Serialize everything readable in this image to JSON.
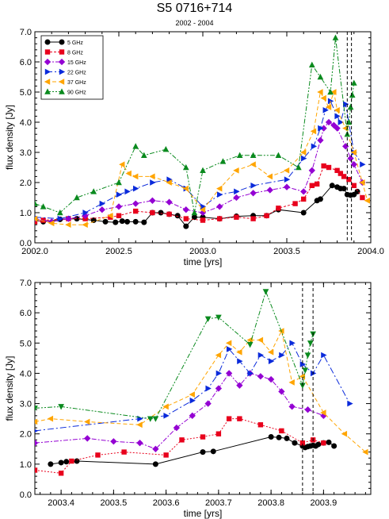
{
  "title": "S5 0716+714",
  "subtitle": "2002 - 2004",
  "chart_data": [
    {
      "type": "scatter",
      "xlabel": "time [yrs]",
      "ylabel": "flux density [Jy]",
      "xlim": [
        2002.0,
        2004.0
      ],
      "ylim": [
        0.0,
        7.0
      ],
      "xticks": [
        "2002.0",
        "2002.5",
        "2003.0",
        "2003.5",
        "2004.0"
      ],
      "yticks": [
        "0.0",
        "1.0",
        "2.0",
        "3.0",
        "4.0",
        "5.0",
        "6.0",
        "7.0"
      ],
      "vlines": [
        2003.86,
        2003.885
      ],
      "legend": "top-left",
      "grid": false,
      "series": [
        {
          "name": "5 GHz",
          "color": "#000000",
          "marker": "circle",
          "dash": "",
          "x": [
            2002.0,
            2002.05,
            2002.15,
            2002.25,
            2002.35,
            2002.42,
            2002.48,
            2002.52,
            2002.55,
            2002.6,
            2002.65,
            2002.7,
            2002.75,
            2002.8,
            2002.85,
            2002.9,
            2002.95,
            2003.0,
            2003.1,
            2003.2,
            2003.3,
            2003.38,
            2003.45,
            2003.6,
            2003.68,
            2003.7,
            2003.77,
            2003.8,
            2003.82,
            2003.84,
            2003.86,
            2003.88,
            2003.9,
            2003.92
          ],
          "y": [
            0.75,
            0.7,
            0.78,
            0.8,
            0.75,
            0.7,
            0.68,
            0.72,
            0.7,
            0.7,
            0.68,
            1.0,
            1.0,
            0.95,
            0.9,
            0.55,
            0.85,
            0.85,
            0.8,
            0.88,
            0.9,
            0.9,
            1.1,
            1.0,
            1.4,
            1.45,
            1.9,
            1.85,
            1.8,
            1.8,
            1.6,
            1.58,
            1.6,
            1.7
          ]
        },
        {
          "name": "8 GHz",
          "color": "#e8001c",
          "marker": "square",
          "dash": "3,2",
          "x": [
            2002.0,
            2002.05,
            2002.2,
            2002.3,
            2002.45,
            2002.5,
            2002.6,
            2002.7,
            2002.8,
            2002.9,
            2003.0,
            2003.1,
            2003.2,
            2003.3,
            2003.38,
            2003.45,
            2003.55,
            2003.6,
            2003.65,
            2003.68,
            2003.72,
            2003.75,
            2003.8,
            2003.82,
            2003.84,
            2003.87,
            2003.9,
            2003.95
          ],
          "y": [
            0.7,
            0.75,
            0.8,
            0.8,
            0.85,
            0.9,
            1.05,
            1.0,
            0.95,
            0.8,
            0.75,
            0.8,
            0.85,
            0.8,
            0.9,
            1.15,
            1.3,
            1.45,
            1.9,
            1.95,
            2.55,
            2.5,
            2.4,
            2.3,
            2.2,
            2.1,
            1.9,
            1.5
          ]
        },
        {
          "name": "15 GHz",
          "color": "#9400d3",
          "marker": "diamond",
          "dash": "6,2,2,2",
          "x": [
            2002.0,
            2002.1,
            2002.2,
            2002.3,
            2002.4,
            2002.5,
            2002.6,
            2002.7,
            2002.8,
            2002.9,
            2003.0,
            2003.1,
            2003.2,
            2003.3,
            2003.4,
            2003.5,
            2003.6,
            2003.65,
            2003.7,
            2003.72,
            2003.75,
            2003.78,
            2003.8,
            2003.85,
            2003.88,
            2003.9,
            2003.95
          ],
          "y": [
            0.8,
            0.7,
            0.8,
            0.9,
            1.1,
            1.2,
            1.3,
            1.4,
            1.35,
            1.1,
            1.0,
            1.2,
            1.5,
            1.65,
            1.75,
            1.85,
            1.7,
            2.4,
            3.4,
            3.8,
            4.0,
            3.9,
            3.8,
            3.2,
            2.8,
            2.6,
            2.0
          ]
        },
        {
          "name": "22 GHz",
          "color": "#0a2adb",
          "marker": "triangle-right",
          "dash": "8,3,2,3",
          "x": [
            2002.0,
            2002.15,
            2002.3,
            2002.4,
            2002.5,
            2002.55,
            2002.6,
            2002.7,
            2002.8,
            2002.9,
            2003.0,
            2003.1,
            2003.2,
            2003.3,
            2003.5,
            2003.6,
            2003.66,
            2003.7,
            2003.73,
            2003.76,
            2003.8,
            2003.82,
            2003.85,
            2003.9,
            2003.95
          ],
          "y": [
            0.85,
            0.8,
            1.0,
            1.3,
            1.6,
            1.7,
            1.8,
            2.0,
            2.1,
            1.8,
            1.2,
            1.6,
            1.7,
            1.9,
            2.1,
            2.8,
            3.2,
            3.8,
            4.4,
            4.7,
            4.2,
            4.0,
            4.6,
            3.0,
            2.6
          ]
        },
        {
          "name": "37 GHz",
          "color": "#ffa500",
          "marker": "triangle-left",
          "dash": "5,3",
          "x": [
            2002.0,
            2002.1,
            2002.2,
            2002.3,
            2002.45,
            2002.52,
            2002.56,
            2002.6,
            2002.7,
            2002.8,
            2002.9,
            2003.0,
            2003.1,
            2003.2,
            2003.3,
            2003.4,
            2003.5,
            2003.6,
            2003.66,
            2003.7,
            2003.72,
            2003.75,
            2003.78,
            2003.8,
            2003.85,
            2003.9,
            2003.95,
            2003.98
          ],
          "y": [
            0.8,
            0.65,
            0.6,
            0.6,
            0.9,
            2.6,
            2.3,
            2.2,
            2.2,
            2.0,
            1.8,
            1.1,
            1.8,
            2.4,
            2.6,
            2.2,
            2.4,
            3.0,
            3.7,
            5.0,
            4.8,
            4.5,
            5.0,
            4.4,
            3.8,
            3.0,
            2.0,
            1.4
          ]
        },
        {
          "name": "90 GHz",
          "color": "#0a8a1e",
          "marker": "triangle-up",
          "dash": "6,2,2,2,2,2",
          "x": [
            2002.0,
            2002.05,
            2002.15,
            2002.25,
            2002.35,
            2002.5,
            2002.6,
            2002.65,
            2002.78,
            2002.9,
            2002.95,
            2003.0,
            2003.12,
            2003.22,
            2003.3,
            2003.45,
            2003.57,
            2003.65,
            2003.7,
            2003.76,
            2003.79,
            2003.86,
            2003.87,
            2003.88,
            2003.89,
            2003.9
          ],
          "y": [
            1.3,
            1.2,
            1.0,
            1.5,
            1.7,
            2.0,
            3.2,
            2.9,
            3.1,
            2.5,
            1.0,
            2.4,
            2.7,
            2.9,
            2.9,
            2.9,
            2.5,
            5.9,
            5.5,
            5.0,
            6.8,
            3.6,
            4.0,
            4.5,
            4.9,
            5.3
          ]
        }
      ]
    },
    {
      "type": "scatter",
      "xlabel": "time [yrs]",
      "ylabel": "flux density [Jy]",
      "xlim": [
        2003.35,
        2003.99
      ],
      "ylim": [
        0.0,
        7.0
      ],
      "xticks": [
        "2003.4",
        "2003.5",
        "2003.6",
        "2003.7",
        "2003.8",
        "2003.9"
      ],
      "yticks": [
        "0.0",
        "1.0",
        "2.0",
        "3.0",
        "4.0",
        "5.0",
        "6.0",
        "7.0"
      ],
      "vlines": [
        2003.86,
        2003.88
      ],
      "grid": false,
      "series": [
        {
          "name": "5 GHz",
          "color": "#000000",
          "marker": "circle",
          "dash": "",
          "x": [
            2003.38,
            2003.4,
            2003.41,
            2003.43,
            2003.58,
            2003.67,
            2003.69,
            2003.8,
            2003.815,
            2003.83,
            2003.845,
            2003.86,
            2003.865,
            2003.87,
            2003.875,
            2003.88,
            2003.885,
            2003.89,
            2003.9,
            2003.91,
            2003.92
          ],
          "y": [
            1.0,
            1.05,
            1.08,
            1.1,
            1.0,
            1.4,
            1.42,
            1.9,
            1.88,
            1.85,
            1.7,
            1.6,
            1.55,
            1.58,
            1.6,
            1.62,
            1.6,
            1.65,
            1.7,
            1.72,
            1.6
          ]
        },
        {
          "name": "8 GHz",
          "color": "#e8001c",
          "marker": "square",
          "dash": "2,2",
          "x": [
            2003.35,
            2003.4,
            2003.42,
            2003.47,
            2003.52,
            2003.6,
            2003.63,
            2003.67,
            2003.7,
            2003.72,
            2003.74,
            2003.78,
            2003.82,
            2003.86,
            2003.88,
            2003.9
          ],
          "y": [
            0.8,
            0.7,
            1.1,
            1.3,
            1.4,
            1.3,
            1.8,
            1.9,
            2.0,
            2.5,
            2.5,
            2.3,
            2.1,
            1.7,
            1.8,
            1.7
          ]
        },
        {
          "name": "15 GHz",
          "color": "#9400d3",
          "marker": "diamond",
          "dash": "6,2,2,2",
          "x": [
            2003.35,
            2003.45,
            2003.5,
            2003.55,
            2003.58,
            2003.62,
            2003.65,
            2003.68,
            2003.7,
            2003.72,
            2003.74,
            2003.76,
            2003.78,
            2003.8,
            2003.82,
            2003.84,
            2003.87,
            2003.9
          ],
          "y": [
            1.7,
            1.85,
            1.75,
            1.7,
            1.5,
            2.2,
            2.6,
            3.0,
            3.5,
            4.0,
            3.6,
            4.0,
            3.9,
            3.8,
            3.4,
            2.9,
            2.8,
            2.6
          ]
        },
        {
          "name": "22 GHz",
          "color": "#0a2adb",
          "marker": "triangle-right",
          "dash": "8,3,2,3",
          "x": [
            2003.35,
            2003.55,
            2003.6,
            2003.65,
            2003.68,
            2003.7,
            2003.72,
            2003.74,
            2003.76,
            2003.78,
            2003.8,
            2003.82,
            2003.84,
            2003.86,
            2003.88,
            2003.9,
            2003.95
          ],
          "y": [
            2.1,
            2.5,
            2.6,
            3.1,
            3.5,
            4.0,
            4.8,
            4.4,
            4.0,
            4.6,
            4.4,
            4.6,
            5.0,
            4.3,
            4.0,
            4.6,
            3.0
          ]
        },
        {
          "name": "37 GHz",
          "color": "#ffa500",
          "marker": "triangle-left",
          "dash": "5,3",
          "x": [
            2003.35,
            2003.38,
            2003.45,
            2003.55,
            2003.6,
            2003.65,
            2003.7,
            2003.72,
            2003.74,
            2003.76,
            2003.78,
            2003.8,
            2003.82,
            2003.84,
            2003.86,
            2003.9,
            2003.94,
            2003.98
          ],
          "y": [
            2.4,
            2.5,
            2.4,
            2.3,
            2.9,
            3.3,
            4.6,
            5.0,
            4.7,
            5.1,
            5.1,
            4.7,
            5.4,
            3.7,
            3.9,
            2.7,
            2.0,
            1.4
          ]
        },
        {
          "name": "90 GHz",
          "color": "#0a8a1e",
          "marker": "triangle-down",
          "dash": "6,2,2,2,2,2",
          "x": [
            2003.35,
            2003.4,
            2003.57,
            2003.58,
            2003.68,
            2003.7,
            2003.76,
            2003.79,
            2003.86,
            2003.865,
            2003.87,
            2003.875,
            2003.88
          ],
          "y": [
            2.85,
            2.9,
            2.5,
            2.5,
            5.8,
            5.85,
            4.95,
            6.7,
            3.6,
            4.1,
            4.6,
            5.0,
            5.3
          ]
        }
      ]
    }
  ]
}
